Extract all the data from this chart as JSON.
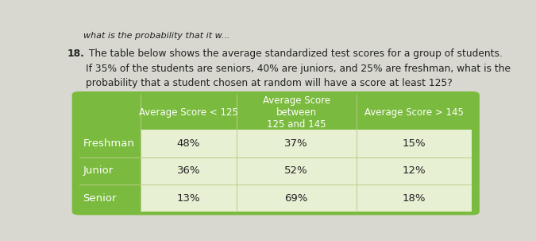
{
  "top_text": "what is the probability that it w...",
  "q_number": "18.",
  "q_line1": " The table below shows the average standardized test scores for a group of students.",
  "q_line2": "If 35% of the students are seniors, 40% are juniors, and 25% are freshman, what is the",
  "q_line3": "probability that a student chosen at random will have a score at least 125?",
  "col_headers": [
    "Average Score < 125",
    "Average Score\nbetween\n125 and 145",
    "Average Score > 145"
  ],
  "row_labels": [
    "Freshman",
    "Junior",
    "Senior"
  ],
  "data": [
    [
      "48%",
      "37%",
      "15%"
    ],
    [
      "36%",
      "52%",
      "12%"
    ],
    [
      "13%",
      "69%",
      "18%"
    ]
  ],
  "table_green": "#7aba3e",
  "table_green_dark": "#6aaa30",
  "data_row_bg": "#e8f0d4",
  "text_white": "#ffffff",
  "text_dark": "#222222",
  "text_mid": "#444444",
  "page_bg": "#d8d8d0",
  "font_size_top": 8.0,
  "font_size_q": 8.8,
  "font_size_header": 8.5,
  "font_size_data": 9.5,
  "font_size_rowlabel": 9.5
}
